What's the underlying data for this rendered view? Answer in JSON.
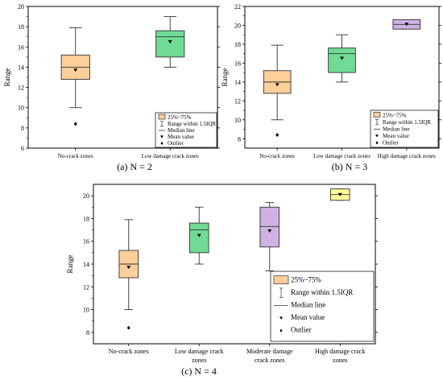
{
  "chart_data": [
    {
      "type": "box",
      "caption": "(a) N = 2",
      "ylabel": "Range",
      "ylim": [
        6,
        20
      ],
      "yticks": [
        6,
        8,
        10,
        12,
        14,
        16,
        18,
        20
      ],
      "categories": [
        "No-crack zones",
        "Low damage crack zones"
      ],
      "colors": [
        "#FFCF99",
        "#6FDB96"
      ],
      "boxes": [
        {
          "whisker_low": 10,
          "q1": 12.8,
          "median": 14,
          "q3": 15.2,
          "whisker_high": 17.9,
          "mean": 13.7,
          "outliers": [
            8.4
          ]
        },
        {
          "whisker_low": 14,
          "q1": 15,
          "median": 17,
          "q3": 17.6,
          "whisker_high": 19,
          "mean": 16.5,
          "outliers": []
        }
      ],
      "legend": [
        "25%~75%",
        "Range within 1.5IQR",
        "Median line",
        "Mean value",
        "Outlier"
      ]
    },
    {
      "type": "box",
      "caption": "(b) N = 3",
      "ylabel": "Range",
      "ylim": [
        7,
        22
      ],
      "yticks": [
        8,
        10,
        12,
        14,
        16,
        18,
        20,
        22
      ],
      "categories": [
        "No-crack zones",
        "Low damage crack zones",
        "High damage crack zones"
      ],
      "colors": [
        "#FFCF99",
        "#6FDB96",
        "#CDB2E3"
      ],
      "boxes": [
        {
          "whisker_low": 10,
          "q1": 12.8,
          "median": 14,
          "q3": 15.2,
          "whisker_high": 17.9,
          "mean": 13.7,
          "outliers": [
            8.4
          ]
        },
        {
          "whisker_low": 14,
          "q1": 15,
          "median": 17,
          "q3": 17.6,
          "whisker_high": 19,
          "mean": 16.5,
          "outliers": []
        },
        {
          "whisker_low": 19.6,
          "q1": 19.6,
          "median": 20.1,
          "q3": 20.6,
          "whisker_high": 20.6,
          "mean": 20.1,
          "outliers": []
        }
      ],
      "legend": [
        "25%~75%",
        "Range within 1.5IQR",
        "Median line",
        "Mean value",
        "Outlier"
      ]
    },
    {
      "type": "box",
      "caption": "(c) N = 4",
      "ylabel": "Range",
      "ylim": [
        7,
        21
      ],
      "yticks": [
        8,
        10,
        12,
        14,
        16,
        18,
        20
      ],
      "categories": [
        "No-crack zones",
        "Low damage crack\nzones",
        "Moderate damage\ncrack zones",
        "High damage crack\nzones"
      ],
      "colors": [
        "#FFCF99",
        "#6FDB96",
        "#CDB2E3",
        "#FFFF99"
      ],
      "boxes": [
        {
          "whisker_low": 10,
          "q1": 12.8,
          "median": 14,
          "q3": 15.2,
          "whisker_high": 17.9,
          "mean": 13.7,
          "outliers": [
            8.4
          ]
        },
        {
          "whisker_low": 14,
          "q1": 15,
          "median": 17,
          "q3": 17.6,
          "whisker_high": 19,
          "mean": 16.5,
          "outliers": []
        },
        {
          "whisker_low": 13.4,
          "q1": 15.5,
          "median": 17.3,
          "q3": 19,
          "whisker_high": 19.4,
          "mean": 16.9,
          "outliers": []
        },
        {
          "whisker_low": 19.6,
          "q1": 19.6,
          "median": 20.1,
          "q3": 20.6,
          "whisker_high": 20.6,
          "mean": 20.1,
          "outliers": []
        }
      ],
      "legend": [
        "25%~75%",
        "Range within 1.5IQR",
        "Median line",
        "Mean value",
        "Outlier"
      ]
    }
  ]
}
